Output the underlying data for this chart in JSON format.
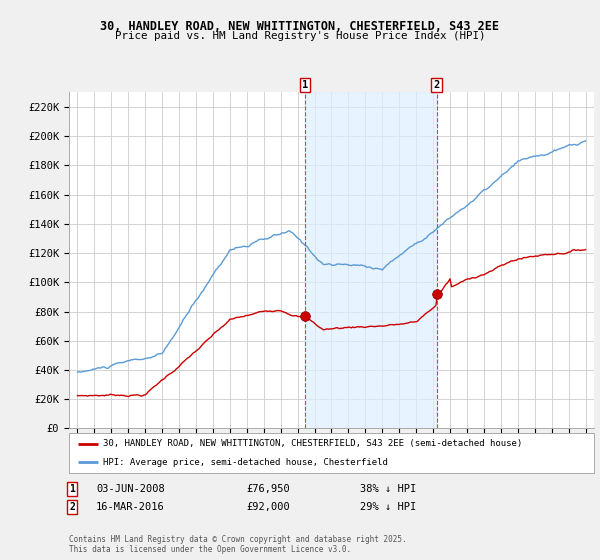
{
  "title_line1": "30, HANDLEY ROAD, NEW WHITTINGTON, CHESTERFIELD, S43 2EE",
  "title_line2": "Price paid vs. HM Land Registry's House Price Index (HPI)",
  "ylim": [
    0,
    230000
  ],
  "yticks": [
    0,
    20000,
    40000,
    60000,
    80000,
    100000,
    120000,
    140000,
    160000,
    180000,
    200000,
    220000
  ],
  "ytick_labels": [
    "£0",
    "£20K",
    "£40K",
    "£60K",
    "£80K",
    "£100K",
    "£120K",
    "£140K",
    "£160K",
    "£180K",
    "£200K",
    "£220K"
  ],
  "hpi_color": "#5b9bd5",
  "hpi_shade_color": "#ddeeff",
  "price_color": "#cc0000",
  "sale1_x": 2008.42,
  "sale2_x": 2016.21,
  "sale1_price": 76950,
  "sale2_price": 92000,
  "marker1_label": "03-JUN-2008",
  "marker2_label": "16-MAR-2016",
  "marker1_price": "£76,950",
  "marker2_price": "£92,000",
  "marker1_pct": "38% ↓ HPI",
  "marker2_pct": "29% ↓ HPI",
  "legend_price": "30, HANDLEY ROAD, NEW WHITTINGTON, CHESTERFIELD, S43 2EE (semi-detached house)",
  "legend_hpi": "HPI: Average price, semi-detached house, Chesterfield",
  "footer": "Contains HM Land Registry data © Crown copyright and database right 2025.\nThis data is licensed under the Open Government Licence v3.0.",
  "bg_color": "#f0f0f0",
  "plot_bg_color": "#ffffff",
  "grid_color": "#cccccc",
  "xlim_left": 1994.5,
  "xlim_right": 2025.5
}
